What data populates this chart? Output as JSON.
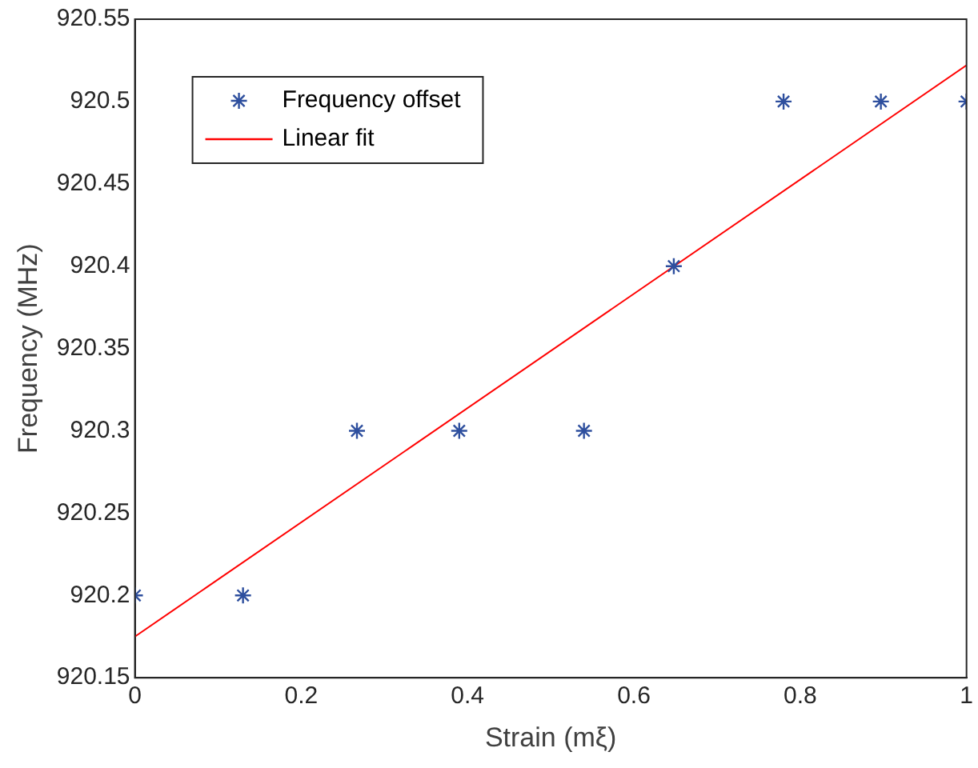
{
  "chart_data": {
    "type": "scatter",
    "xlabel": "Strain (mξ)",
    "ylabel": "Frequency (MHz)",
    "xlim": [
      0,
      1
    ],
    "xticks": [
      0,
      0.2,
      0.4,
      0.6,
      0.8,
      1
    ],
    "ylim": [
      920.15,
      920.55
    ],
    "yticks": [
      920.15,
      920.2,
      920.25,
      920.3,
      920.35,
      920.4,
      920.45,
      920.5,
      920.55
    ],
    "grid": false,
    "legend": "top left",
    "series": [
      {
        "name": "Frequency offset",
        "marker": "cross",
        "color": "#2e4f9e",
        "x": [
          0,
          0.13,
          0.267,
          0.39,
          0.54,
          0.648,
          0.78,
          0.897,
          1
        ],
        "values": [
          920.2,
          920.2,
          920.3,
          920.3,
          920.3,
          920.4,
          920.5,
          920.5,
          920.5
        ]
      },
      {
        "name": "Linear fit",
        "type": "line",
        "marker": "none",
        "line_style": "solid",
        "color": "#ff0000",
        "x": [
          0,
          1
        ],
        "values": [
          920.175,
          920.522
        ]
      }
    ]
  }
}
